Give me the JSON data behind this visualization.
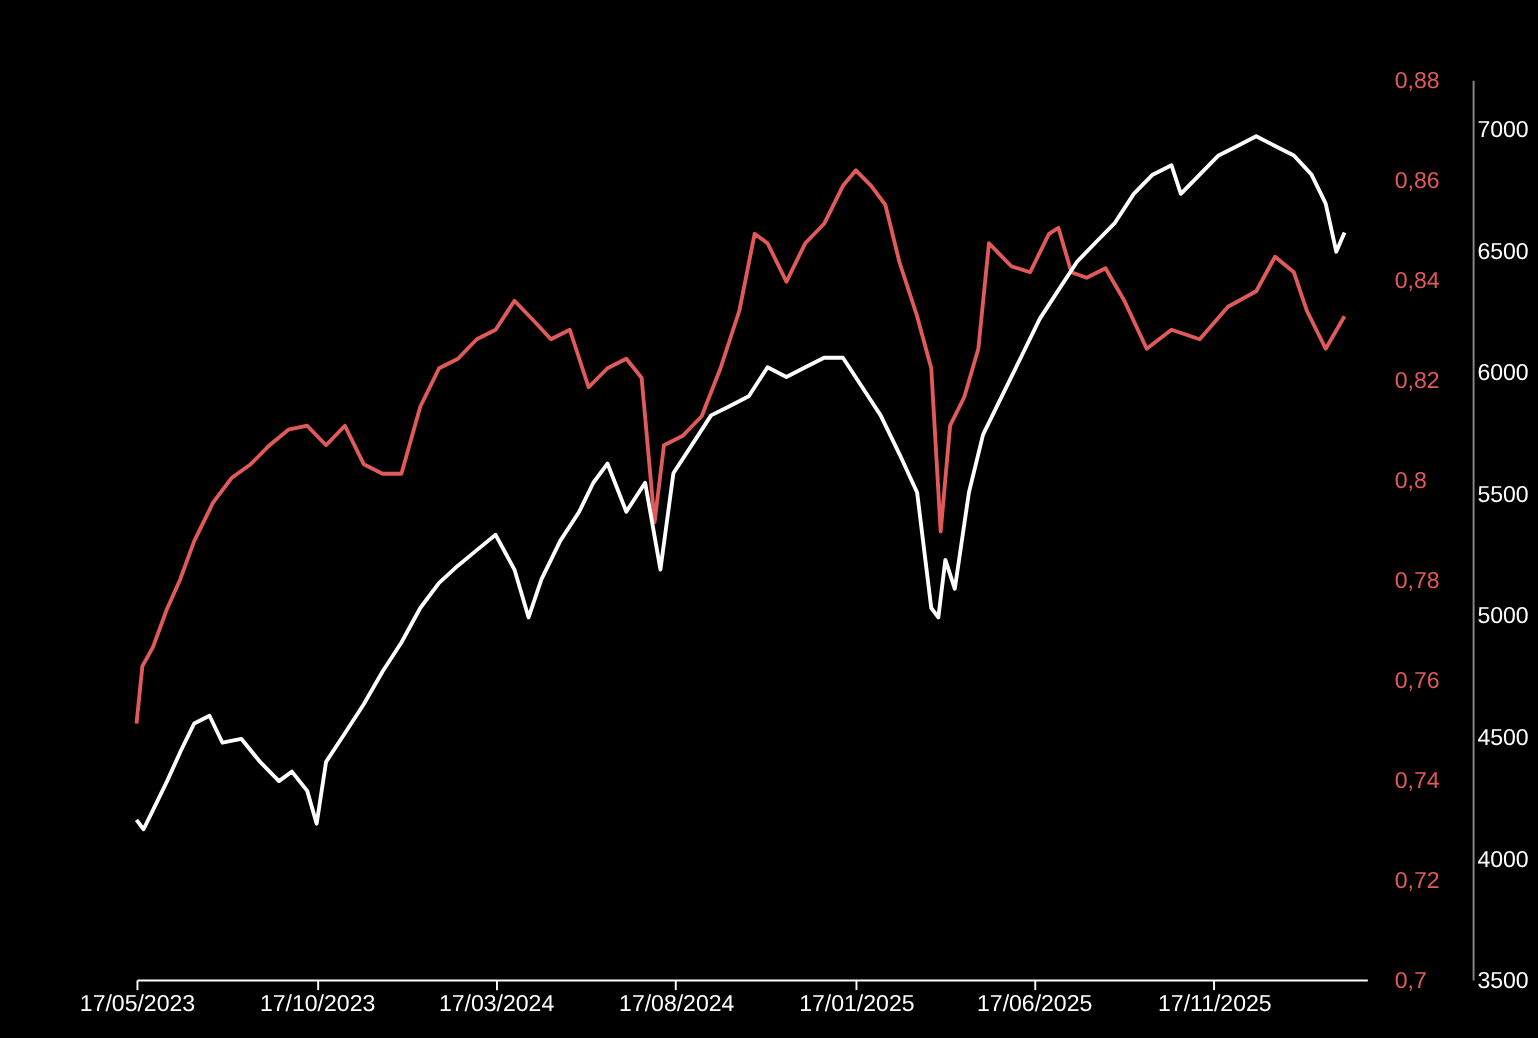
{
  "chart_data": {
    "type": "line",
    "xlim": [
      "2023-05-17",
      "2026-03-27"
    ],
    "xticks": [
      {
        "value": "2023-05-17",
        "label": "17/05/2023"
      },
      {
        "value": "2023-10-17",
        "label": "17/10/2023"
      },
      {
        "value": "2024-03-17",
        "label": "17/03/2024"
      },
      {
        "value": "2024-08-17",
        "label": "17/08/2024"
      },
      {
        "value": "2025-01-17",
        "label": "17/01/2025"
      },
      {
        "value": "2025-06-17",
        "label": "17/06/2025"
      },
      {
        "value": "2025-11-17",
        "label": "17/11/2025"
      }
    ],
    "ylim": [
      0.7,
      0.88
    ],
    "yticks": [
      {
        "value": 0.7,
        "label": "0,7"
      },
      {
        "value": 0.72,
        "label": "0,72"
      },
      {
        "value": 0.74,
        "label": "0,74"
      },
      {
        "value": 0.76,
        "label": "0,76"
      },
      {
        "value": 0.78,
        "label": "0,78"
      },
      {
        "value": 0.8,
        "label": "0,8"
      },
      {
        "value": 0.82,
        "label": "0,82"
      },
      {
        "value": 0.84,
        "label": "0,84"
      },
      {
        "value": 0.86,
        "label": "0,86"
      },
      {
        "value": 0.88,
        "label": "0,88"
      }
    ],
    "y2lim": [
      3500,
      7200
    ],
    "y2ticks": [
      3500,
      4000,
      4500,
      5000,
      5500,
      6000,
      6500,
      7000
    ],
    "grid": false,
    "series": [
      {
        "color": "#e05a5a",
        "x": [
          "2023-05-17",
          "2023-05-22",
          "2023-05-31",
          "2023-06-12",
          "2023-06-23",
          "2023-07-05",
          "2023-07-21",
          "2023-08-06",
          "2023-08-22",
          "2023-09-07",
          "2023-09-23",
          "2023-10-09",
          "2023-10-25",
          "2023-11-10",
          "2023-11-26",
          "2023-12-12",
          "2023-12-28",
          "2024-01-13",
          "2024-01-29",
          "2024-02-14",
          "2024-03-01",
          "2024-03-17",
          "2024-04-02",
          "2024-04-18",
          "2024-05-03",
          "2024-05-19",
          "2024-06-04",
          "2024-06-20",
          "2024-07-06",
          "2024-07-19",
          "2024-07-30",
          "2024-08-07",
          "2024-08-23",
          "2024-09-08",
          "2024-09-24",
          "2024-10-10",
          "2024-10-23",
          "2024-11-03",
          "2024-11-19",
          "2024-12-05",
          "2024-12-21",
          "2025-01-06",
          "2025-01-17",
          "2025-01-30",
          "2025-02-11",
          "2025-02-23",
          "2025-03-10",
          "2025-03-22",
          "2025-03-30",
          "2025-04-07",
          "2025-04-19",
          "2025-05-01",
          "2025-05-10",
          "2025-05-29",
          "2025-06-14",
          "2025-06-30",
          "2025-07-08",
          "2025-07-19",
          "2025-08-01",
          "2025-08-17",
          "2025-09-02",
          "2025-09-21",
          "2025-10-12",
          "2025-11-05",
          "2025-11-29",
          "2025-12-23",
          "2026-01-08",
          "2026-01-24",
          "2026-02-04",
          "2026-02-20",
          "2026-03-08"
        ],
        "values": [
          0.7512,
          0.7627,
          0.7665,
          0.7742,
          0.78,
          0.7877,
          0.7954,
          0.8004,
          0.8031,
          0.8069,
          0.81,
          0.8108,
          0.8069,
          0.8108,
          0.8031,
          0.8012,
          0.8012,
          0.8146,
          0.8223,
          0.8242,
          0.8281,
          0.83,
          0.8358,
          0.8319,
          0.8281,
          0.83,
          0.8185,
          0.8223,
          0.8242,
          0.8204,
          0.7915,
          0.8069,
          0.8088,
          0.8127,
          0.8223,
          0.8338,
          0.8492,
          0.8473,
          0.8396,
          0.8473,
          0.8512,
          0.8588,
          0.8619,
          0.8588,
          0.855,
          0.8435,
          0.8327,
          0.8223,
          0.7896,
          0.8108,
          0.8165,
          0.8262,
          0.8473,
          0.8427,
          0.8415,
          0.8492,
          0.8504,
          0.8415,
          0.8404,
          0.8423,
          0.8358,
          0.8262,
          0.83,
          0.8281,
          0.8346,
          0.8377,
          0.8446,
          0.8415,
          0.8338,
          0.8262,
          0.8327
        ]
      },
      {
        "color": "#ffffff",
        "axis": "y2",
        "x": [
          "2023-05-17",
          "2023-05-23",
          "2023-05-31",
          "2023-06-12",
          "2023-06-23",
          "2023-07-05",
          "2023-07-18",
          "2023-07-29",
          "2023-08-14",
          "2023-08-30",
          "2023-09-15",
          "2023-09-26",
          "2023-10-09",
          "2023-10-17",
          "2023-10-25",
          "2023-11-10",
          "2023-11-26",
          "2023-12-12",
          "2023-12-28",
          "2024-01-13",
          "2024-01-29",
          "2024-02-14",
          "2024-03-01",
          "2024-03-17",
          "2024-04-02",
          "2024-04-14",
          "2024-04-25",
          "2024-05-11",
          "2024-05-27",
          "2024-06-08",
          "2024-06-20",
          "2024-07-06",
          "2024-07-22",
          "2024-08-04",
          "2024-08-15",
          "2024-08-31",
          "2024-09-16",
          "2024-10-02",
          "2024-10-18",
          "2024-11-03",
          "2024-11-19",
          "2024-12-05",
          "2024-12-21",
          "2025-01-06",
          "2025-01-22",
          "2025-02-07",
          "2025-02-23",
          "2025-03-10",
          "2025-03-22",
          "2025-03-28",
          "2025-04-03",
          "2025-04-11",
          "2025-04-23",
          "2025-05-05",
          "2025-05-21",
          "2025-06-06",
          "2025-06-22",
          "2025-07-08",
          "2025-07-24",
          "2025-08-09",
          "2025-08-25",
          "2025-09-10",
          "2025-09-26",
          "2025-10-12",
          "2025-10-20",
          "2025-11-05",
          "2025-11-21",
          "2025-12-07",
          "2025-12-23",
          "2026-01-08",
          "2026-01-24",
          "2026-02-08",
          "2026-02-20",
          "2026-03-01",
          "2026-03-08"
        ],
        "values": [
          4157,
          4118,
          4197,
          4316,
          4434,
          4553,
          4585,
          4474,
          4490,
          4395,
          4316,
          4355,
          4276,
          4141,
          4395,
          4513,
          4632,
          4767,
          4886,
          5028,
          5131,
          5202,
          5266,
          5329,
          5186,
          4989,
          5147,
          5305,
          5424,
          5543,
          5622,
          5424,
          5543,
          5186,
          5582,
          5701,
          5820,
          5859,
          5899,
          6018,
          5978,
          6018,
          6057,
          6057,
          5939,
          5820,
          5661,
          5503,
          5028,
          4989,
          5226,
          5107,
          5503,
          5741,
          5899,
          6057,
          6216,
          6335,
          6453,
          6533,
          6612,
          6731,
          6810,
          6849,
          6731,
          6810,
          6889,
          6928,
          6968,
          6928,
          6889,
          6810,
          6691,
          6493,
          6572
        ]
      }
    ]
  }
}
